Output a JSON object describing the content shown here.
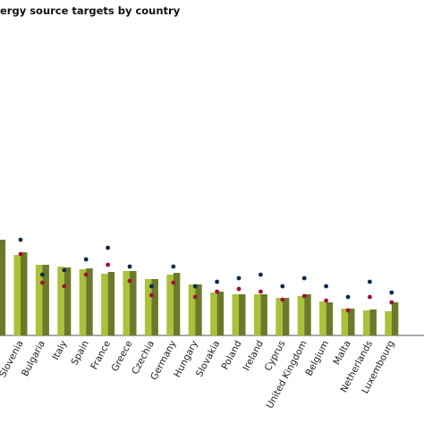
{
  "chart_data": {
    "type": "bar",
    "title": "ergy source targets by country",
    "categories": [
      null,
      "Slovenia",
      "Bulgaria",
      "Italy",
      "Spain",
      "France",
      "Greece",
      "Czechia",
      "Germany",
      "Hungary",
      "Slovakia",
      "Poland",
      "Ireland",
      "Cyprus",
      "United Kingdom",
      "Belgium",
      "Malta",
      "Netherlands",
      "Luxembourg"
    ],
    "ylim": [
      0,
      75
    ],
    "series": [
      {
        "color": "#a9c23a",
        "marker": "bar",
        "values": [
          null,
          18,
          15.8,
          15.4,
          14.8,
          13.8,
          14.4,
          12.6,
          13.6,
          11.4,
          9.6,
          9.2,
          9.2,
          8.4,
          8.8,
          7.6,
          6,
          5.6,
          5.4
        ]
      },
      {
        "color": "#6b7a2a",
        "marker": "bar",
        "values": [
          21.4,
          18.6,
          15.8,
          15.2,
          15,
          14.2,
          14.4,
          12.6,
          14,
          11.4,
          9.8,
          9.2,
          9.2,
          8.4,
          9.2,
          7.4,
          6,
          5.8,
          7.4
        ]
      },
      {
        "color": "#0d2a4a",
        "marker": "dot",
        "values": [
          null,
          21.4,
          13.6,
          14.6,
          17,
          19.6,
          15.4,
          11,
          15.4,
          11,
          12,
          12.8,
          13.6,
          11,
          12.8,
          11,
          8.6,
          12,
          9.6
        ]
      },
      {
        "color": "#a0103a",
        "marker": "dot",
        "values": [
          null,
          18.2,
          11.8,
          11,
          13.6,
          15.8,
          12.2,
          9,
          11.8,
          8.6,
          9.8,
          10.4,
          9.8,
          8,
          8.8,
          7.8,
          5.6,
          8.6,
          7.4
        ]
      }
    ]
  }
}
